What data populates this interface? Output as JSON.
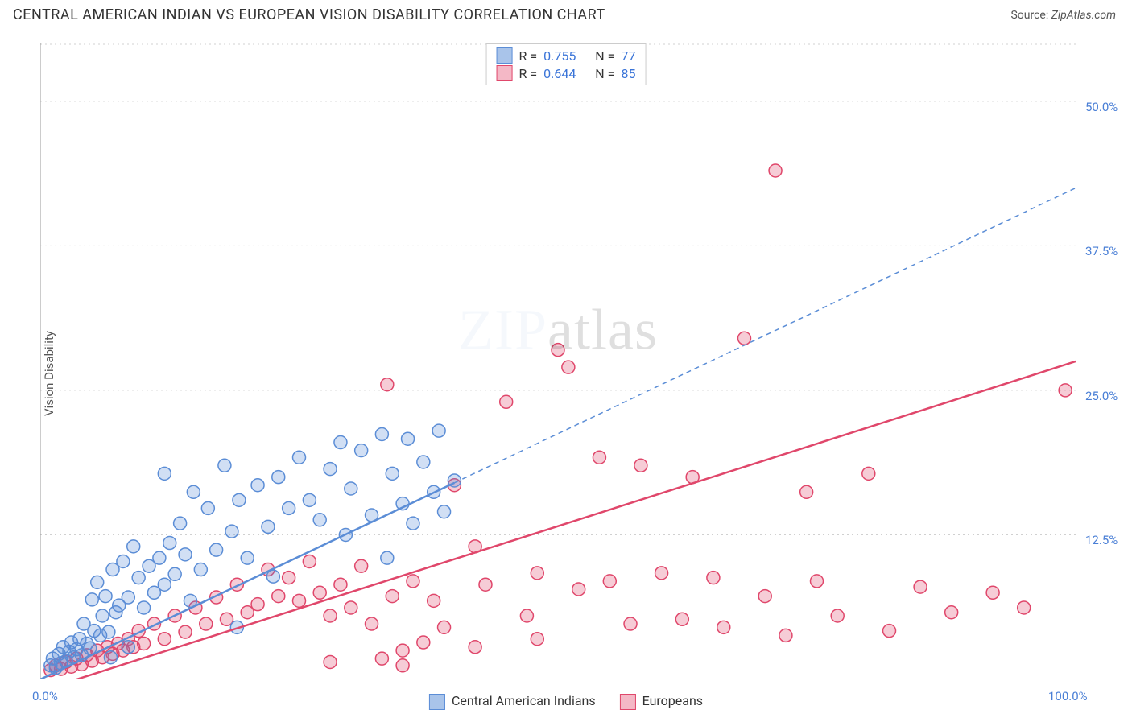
{
  "title": "CENTRAL AMERICAN INDIAN VS EUROPEAN VISION DISABILITY CORRELATION CHART",
  "source_label": "Source:",
  "source_value": "ZipAtlas.com",
  "ylabel": "Vision Disability",
  "watermark_zip": "ZIP",
  "watermark_atlas": "atlas",
  "chart": {
    "type": "scatter",
    "background_color": "#ffffff",
    "grid_color": "#d0d0d0",
    "grid_dash": "2 4",
    "axis_color": "#999999",
    "xlim": [
      0,
      100
    ],
    "ylim": [
      0,
      55
    ],
    "xtick_positions": [
      0,
      20,
      40,
      60,
      80,
      100
    ],
    "xtick_labels_shown": {
      "0": "0.0%",
      "100": "100.0%"
    },
    "ytick_positions": [
      12.5,
      25.0,
      37.5,
      50.0
    ],
    "ytick_labels": [
      "12.5%",
      "25.0%",
      "37.5%",
      "50.0%"
    ],
    "axis_label_color": "#4a7fd6",
    "axis_label_fontsize": 15,
    "marker_radius": 8,
    "marker_fill_opacity": 0.28,
    "marker_stroke_width": 1.5,
    "series": [
      {
        "name": "Central American Indians",
        "color_stroke": "#5b8dd6",
        "color_fill": "#a9c4ea",
        "R": "0.755",
        "N": "77",
        "trend": {
          "x1": 0,
          "y1": 0,
          "x2": 40,
          "y2": 17,
          "ext_x2": 100,
          "ext_y2": 42.5,
          "ext_dashed": true
        },
        "points": [
          [
            1,
            1.2
          ],
          [
            1.2,
            1.8
          ],
          [
            1.5,
            1
          ],
          [
            1.8,
            2.2
          ],
          [
            2,
            1.4
          ],
          [
            2.2,
            2.8
          ],
          [
            2.5,
            1.6
          ],
          [
            2.8,
            2.4
          ],
          [
            3,
            3.2
          ],
          [
            3.2,
            1.9
          ],
          [
            3.5,
            2.6
          ],
          [
            3.8,
            3.5
          ],
          [
            4,
            2.1
          ],
          [
            4.2,
            4.8
          ],
          [
            4.5,
            3.1
          ],
          [
            4.8,
            2.7
          ],
          [
            5,
            6.9
          ],
          [
            5.2,
            4.2
          ],
          [
            5.5,
            8.4
          ],
          [
            5.8,
            3.8
          ],
          [
            6,
            5.5
          ],
          [
            6.3,
            7.2
          ],
          [
            6.6,
            4.1
          ],
          [
            7,
            9.5
          ],
          [
            7.3,
            5.8
          ],
          [
            7.6,
            6.4
          ],
          [
            8,
            10.2
          ],
          [
            8.5,
            7.1
          ],
          [
            9,
            11.5
          ],
          [
            9.5,
            8.8
          ],
          [
            10,
            6.2
          ],
          [
            10.5,
            9.8
          ],
          [
            11,
            7.5
          ],
          [
            11.5,
            10.5
          ],
          [
            12,
            8.2
          ],
          [
            12.5,
            11.8
          ],
          [
            13,
            9.1
          ],
          [
            13.5,
            13.5
          ],
          [
            14,
            10.8
          ],
          [
            14.8,
            16.2
          ],
          [
            15.5,
            9.5
          ],
          [
            16.2,
            14.8
          ],
          [
            17,
            11.2
          ],
          [
            17.8,
            18.5
          ],
          [
            18.5,
            12.8
          ],
          [
            19.2,
            15.5
          ],
          [
            20,
            10.5
          ],
          [
            21,
            16.8
          ],
          [
            22,
            13.2
          ],
          [
            23,
            17.5
          ],
          [
            24,
            14.8
          ],
          [
            25,
            19.2
          ],
          [
            26,
            15.5
          ],
          [
            27,
            13.8
          ],
          [
            28,
            18.2
          ],
          [
            29,
            20.5
          ],
          [
            29.5,
            12.5
          ],
          [
            30,
            16.5
          ],
          [
            31,
            19.8
          ],
          [
            32,
            14.2
          ],
          [
            33,
            21.2
          ],
          [
            33.5,
            10.5
          ],
          [
            34,
            17.8
          ],
          [
            35,
            15.2
          ],
          [
            35.5,
            20.8
          ],
          [
            36,
            13.5
          ],
          [
            37,
            18.8
          ],
          [
            38,
            16.2
          ],
          [
            38.5,
            21.5
          ],
          [
            39,
            14.5
          ],
          [
            40,
            17.2
          ],
          [
            12,
            17.8
          ],
          [
            19,
            4.5
          ],
          [
            8.5,
            2.8
          ],
          [
            6.8,
            1.9
          ],
          [
            14.5,
            6.8
          ],
          [
            22.5,
            8.9
          ]
        ]
      },
      {
        "name": "Europeans",
        "color_stroke": "#e0476b",
        "color_fill": "#f4b8c6",
        "R": "0.644",
        "N": "85",
        "trend": {
          "x1": 0,
          "y1": -1,
          "x2": 100,
          "y2": 27.5,
          "ext_dashed": false
        },
        "points": [
          [
            1,
            0.8
          ],
          [
            1.5,
            1.2
          ],
          [
            2,
            0.9
          ],
          [
            2.5,
            1.5
          ],
          [
            3,
            1.1
          ],
          [
            3.5,
            1.8
          ],
          [
            4,
            1.3
          ],
          [
            4.5,
            2.1
          ],
          [
            5,
            1.6
          ],
          [
            5.5,
            2.5
          ],
          [
            6,
            1.9
          ],
          [
            6.5,
            2.8
          ],
          [
            7,
            2.2
          ],
          [
            7.5,
            3.1
          ],
          [
            8,
            2.5
          ],
          [
            8.5,
            3.5
          ],
          [
            9,
            2.8
          ],
          [
            9.5,
            4.2
          ],
          [
            10,
            3.1
          ],
          [
            11,
            4.8
          ],
          [
            12,
            3.5
          ],
          [
            13,
            5.5
          ],
          [
            14,
            4.1
          ],
          [
            15,
            6.2
          ],
          [
            16,
            4.8
          ],
          [
            17,
            7.1
          ],
          [
            18,
            5.2
          ],
          [
            19,
            8.2
          ],
          [
            20,
            5.8
          ],
          [
            21,
            6.5
          ],
          [
            22,
            9.5
          ],
          [
            23,
            7.2
          ],
          [
            24,
            8.8
          ],
          [
            25,
            6.8
          ],
          [
            26,
            10.2
          ],
          [
            27,
            7.5
          ],
          [
            28,
            5.5
          ],
          [
            29,
            8.2
          ],
          [
            30,
            6.2
          ],
          [
            31,
            9.8
          ],
          [
            32,
            4.8
          ],
          [
            33,
            1.8
          ],
          [
            33.5,
            25.5
          ],
          [
            34,
            7.2
          ],
          [
            35,
            2.5
          ],
          [
            36,
            8.5
          ],
          [
            37,
            3.2
          ],
          [
            38,
            6.8
          ],
          [
            39,
            4.5
          ],
          [
            40,
            16.8
          ],
          [
            42,
            11.5
          ],
          [
            43,
            8.2
          ],
          [
            45,
            24
          ],
          [
            47,
            5.5
          ],
          [
            48,
            9.2
          ],
          [
            50,
            28.5
          ],
          [
            51,
            27
          ],
          [
            52,
            7.8
          ],
          [
            54,
            19.2
          ],
          [
            55,
            8.5
          ],
          [
            57,
            4.8
          ],
          [
            58,
            18.5
          ],
          [
            60,
            9.2
          ],
          [
            62,
            5.2
          ],
          [
            63,
            17.5
          ],
          [
            65,
            8.8
          ],
          [
            66,
            4.5
          ],
          [
            68,
            29.5
          ],
          [
            70,
            7.2
          ],
          [
            71,
            44
          ],
          [
            72,
            3.8
          ],
          [
            74,
            16.2
          ],
          [
            75,
            8.5
          ],
          [
            77,
            5.5
          ],
          [
            80,
            17.8
          ],
          [
            82,
            4.2
          ],
          [
            85,
            8.0
          ],
          [
            88,
            5.8
          ],
          [
            92,
            7.5
          ],
          [
            95,
            6.2
          ],
          [
            99,
            25
          ],
          [
            28,
            1.5
          ],
          [
            35,
            1.2
          ],
          [
            42,
            2.8
          ],
          [
            48,
            3.5
          ]
        ]
      }
    ]
  },
  "legend_top": {
    "R_label": "R =",
    "N_label": "N ="
  },
  "legend_bottom": {
    "items": [
      {
        "label": "Central American Indians",
        "stroke": "#5b8dd6",
        "fill": "#a9c4ea"
      },
      {
        "label": "Europeans",
        "stroke": "#e0476b",
        "fill": "#f4b8c6"
      }
    ]
  }
}
